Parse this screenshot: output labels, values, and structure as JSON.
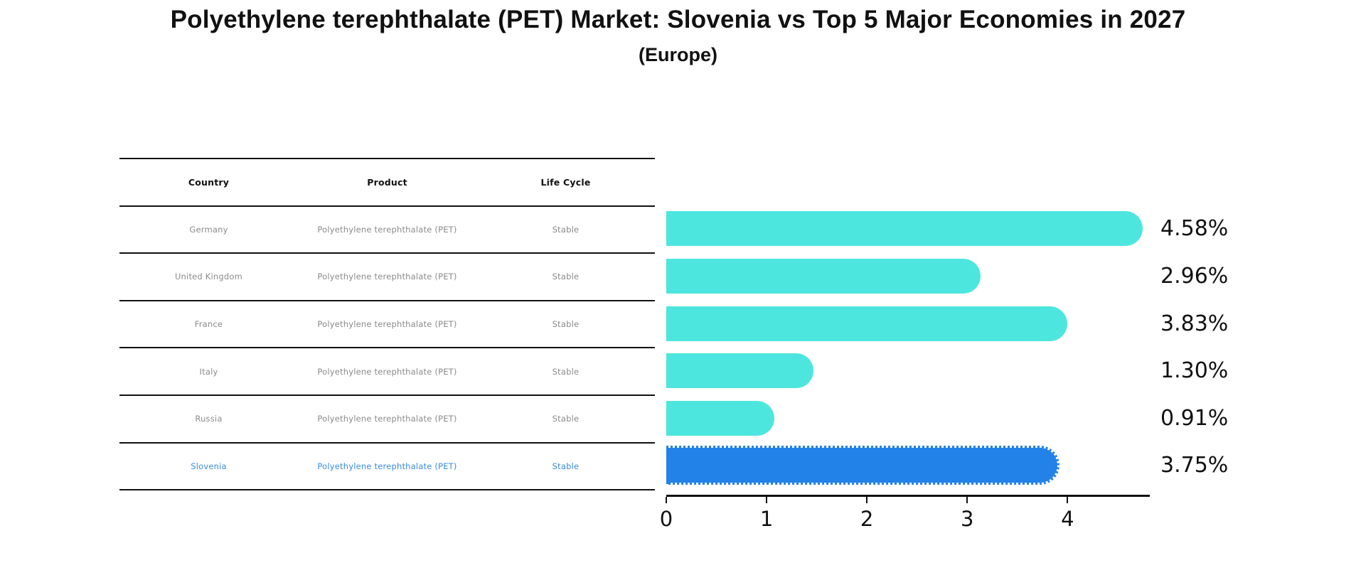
{
  "title": "Polyethylene terephthalate (PET) Market: Slovenia vs Top 5 Major Economies in 2027",
  "subtitle": "(Europe)",
  "table": {
    "headers": [
      "Country",
      "Product",
      "Life Cycle"
    ],
    "rows": [
      {
        "country": "Germany",
        "product": "Polyethylene terephthalate (PET)",
        "life_cycle": "Stable",
        "highlight": false
      },
      {
        "country": "United Kingdom",
        "product": "Polyethylene terephthalate (PET)",
        "life_cycle": "Stable",
        "highlight": false
      },
      {
        "country": "France",
        "product": "Polyethylene terephthalate (PET)",
        "life_cycle": "Stable",
        "highlight": false
      },
      {
        "country": "Italy",
        "product": "Polyethylene terephthalate (PET)",
        "life_cycle": "Stable",
        "highlight": false
      },
      {
        "country": "Russia",
        "product": "Polyethylene terephthalate (PET)",
        "life_cycle": "Stable",
        "highlight": false
      },
      {
        "country": "Slovenia",
        "product": "Polyethylene terephthalate (PET)",
        "life_cycle": "Stable",
        "highlight": true
      }
    ]
  },
  "chart_data": {
    "type": "bar",
    "orientation": "horizontal",
    "title": "Polyethylene terephthalate (PET) Market: Slovenia vs Top 5 Major Economies in 2027 (Europe)",
    "categories": [
      "Germany",
      "United Kingdom",
      "France",
      "Italy",
      "Russia",
      "Slovenia"
    ],
    "values": [
      4.58,
      2.96,
      3.83,
      1.3,
      0.91,
      3.75
    ],
    "value_labels": [
      "4.58%",
      "2.96%",
      "3.83%",
      "1.30%",
      "0.91%",
      "3.75%"
    ],
    "xlabel": "",
    "ylabel": "",
    "xticks": [
      0,
      1,
      2,
      3,
      4
    ],
    "xtick_labels": [
      "0",
      "1",
      "2",
      "3",
      "4"
    ],
    "xlim": [
      0,
      4.82
    ],
    "grid": false,
    "legend": false,
    "highlight_index": 5,
    "bar_color": "#4de6df",
    "highlight_color": "#2282e8"
  },
  "colors": {
    "bar": "#4de6df",
    "highlight_bar": "#2282e8",
    "highlight_text": "#3a8bd8",
    "table_text": "#8a8a8a",
    "axis": "#111111"
  }
}
